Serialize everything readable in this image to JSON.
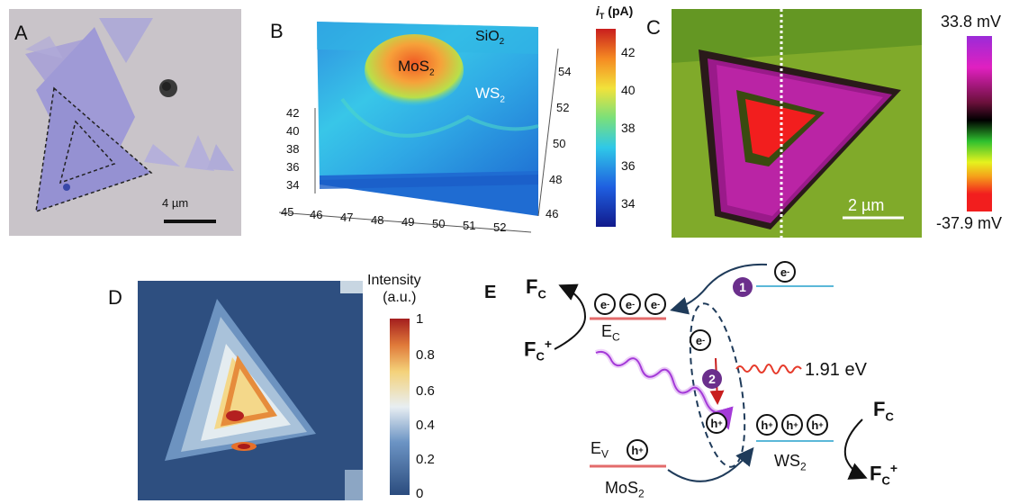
{
  "panels": {
    "a": {
      "label": "A",
      "scale_bar": "4 µm"
    },
    "b": {
      "label": "B",
      "colorbar_title": "i",
      "colorbar_title_sub": "T",
      "colorbar_unit": " (pA)",
      "colorbar_ticks": [
        "42",
        "40",
        "38",
        "36",
        "34"
      ],
      "z_ticks": [
        "42",
        "40",
        "38",
        "36",
        "34"
      ],
      "x_ticks": [
        "45",
        "46",
        "47",
        "48",
        "49",
        "50",
        "51",
        "52"
      ],
      "y_ticks": [
        "54",
        "52",
        "50",
        "48",
        "46"
      ],
      "region_sio2": "SiO",
      "region_sio2_sub": "2",
      "region_mos2": "MoS",
      "region_mos2_sub": "2",
      "region_ws2": "WS",
      "region_ws2_sub": "2"
    },
    "c": {
      "label": "C",
      "scale_bar": "2 µm",
      "colorbar_max": "33.8 mV",
      "colorbar_min": "-37.9 mV"
    },
    "d": {
      "label": "D",
      "colorbar_title_line1": "Intensity",
      "colorbar_title_line2": "(a.u.)",
      "colorbar_ticks": [
        "1",
        "0.8",
        "0.6",
        "0.4",
        "0.2",
        "0"
      ]
    },
    "e": {
      "label": "E",
      "fc_left_top": "F",
      "fc_left_bottom": "F",
      "fc_right_top": "F",
      "fc_right_bottom": "F",
      "fc_sub": "C",
      "fc_plus": "+",
      "ec_label": "E",
      "ec_sub": "C",
      "ev_label": "E",
      "ev_sub": "V",
      "electron": "e",
      "hole": "h",
      "minus": "-",
      "plus": "+",
      "step1": "1",
      "step2": "2",
      "emission_energy": "1.91 eV",
      "mos2_label": "MoS",
      "mos2_sub": "2",
      "ws2_label": "WS",
      "ws2_sub": "2"
    }
  },
  "colors": {
    "accent_purple": "#6b2f8c",
    "band_red": "#e36b6b",
    "band_blue": "#5bb8d8",
    "arrow_navy": "#1f3b5a"
  }
}
